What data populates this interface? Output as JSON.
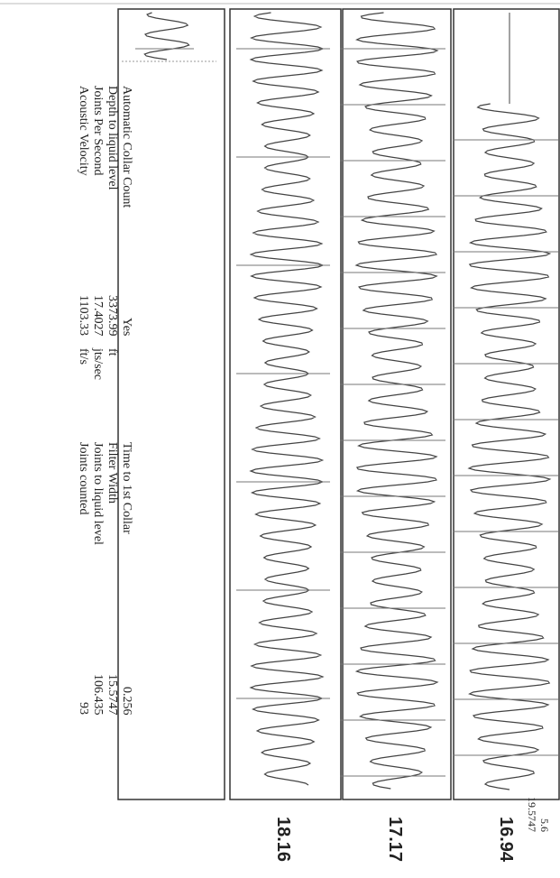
{
  "parameters_left": [
    {
      "label": "Acoustic Velocity",
      "value": "1103.33",
      "unit": "ft/s"
    },
    {
      "label": "Joints Per Second",
      "value": "17.4027",
      "unit": "jts/sec"
    },
    {
      "label": "Depth to liquid level",
      "value": "3373.99",
      "unit": "ft"
    },
    {
      "label": "Automatic Collar Count",
      "value": "Yes"
    }
  ],
  "parameters_right": [
    {
      "label": "Joints counted",
      "value": "93"
    },
    {
      "label": "Joints to liquid level",
      "value": "106.435"
    },
    {
      "label": "Filter Width",
      "value": "15.5747"
    },
    {
      "label": "Time to 1st Collar",
      "value": "0.256"
    }
  ],
  "extra_values": [
    "19.5747",
    "5.6"
  ],
  "traces": [
    {
      "label": "18.16"
    },
    {
      "label": "17.17"
    },
    {
      "label": "16.94"
    }
  ]
}
